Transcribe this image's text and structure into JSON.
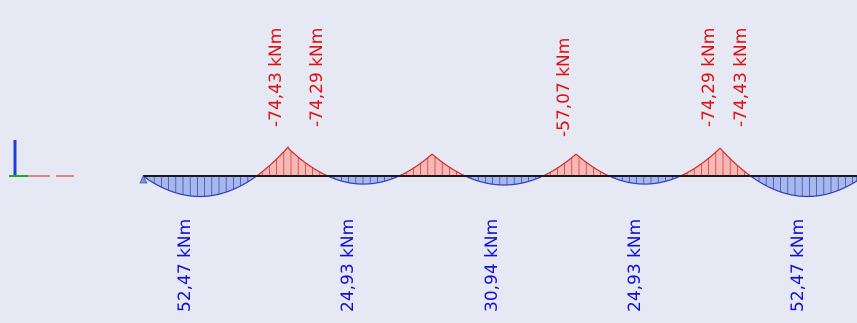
{
  "diagram": {
    "type": "bending-moment-diagram",
    "colors": {
      "background": "#e6e8f3",
      "beam": "#1a1a1a",
      "sagging_fill": "#a9b8ec",
      "sagging_stroke": "#2c3fb8",
      "hogging_fill": "#f7b8b8",
      "hogging_stroke": "#d42a2a",
      "sagging_text": "#1010d8",
      "hogging_text": "#e01010",
      "axis_z": "#1f3fd8",
      "axis_y": "#22aa22",
      "axis_x": "#e02020"
    },
    "sagging_labels": [
      {
        "name": "span-1-moment",
        "text": "52,47 kNm"
      },
      {
        "name": "span-2-moment",
        "text": "24,93 kNm"
      },
      {
        "name": "span-3-moment",
        "text": "30,94 kNm"
      },
      {
        "name": "span-4-moment",
        "text": "24,93 kNm"
      },
      {
        "name": "span-5-moment",
        "text": "52,47 kNm"
      }
    ],
    "hogging_labels": [
      {
        "name": "support-1-left-moment",
        "text": "-74,43 kNm"
      },
      {
        "name": "support-1-right-moment",
        "text": "-74,29 kNm"
      },
      {
        "name": "support-3-moment",
        "text": "-57,07 kNm"
      },
      {
        "name": "support-4-left-moment",
        "text": "-74,29 kNm"
      },
      {
        "name": "support-4-right-moment",
        "text": "-74,43 kNm"
      }
    ]
  }
}
